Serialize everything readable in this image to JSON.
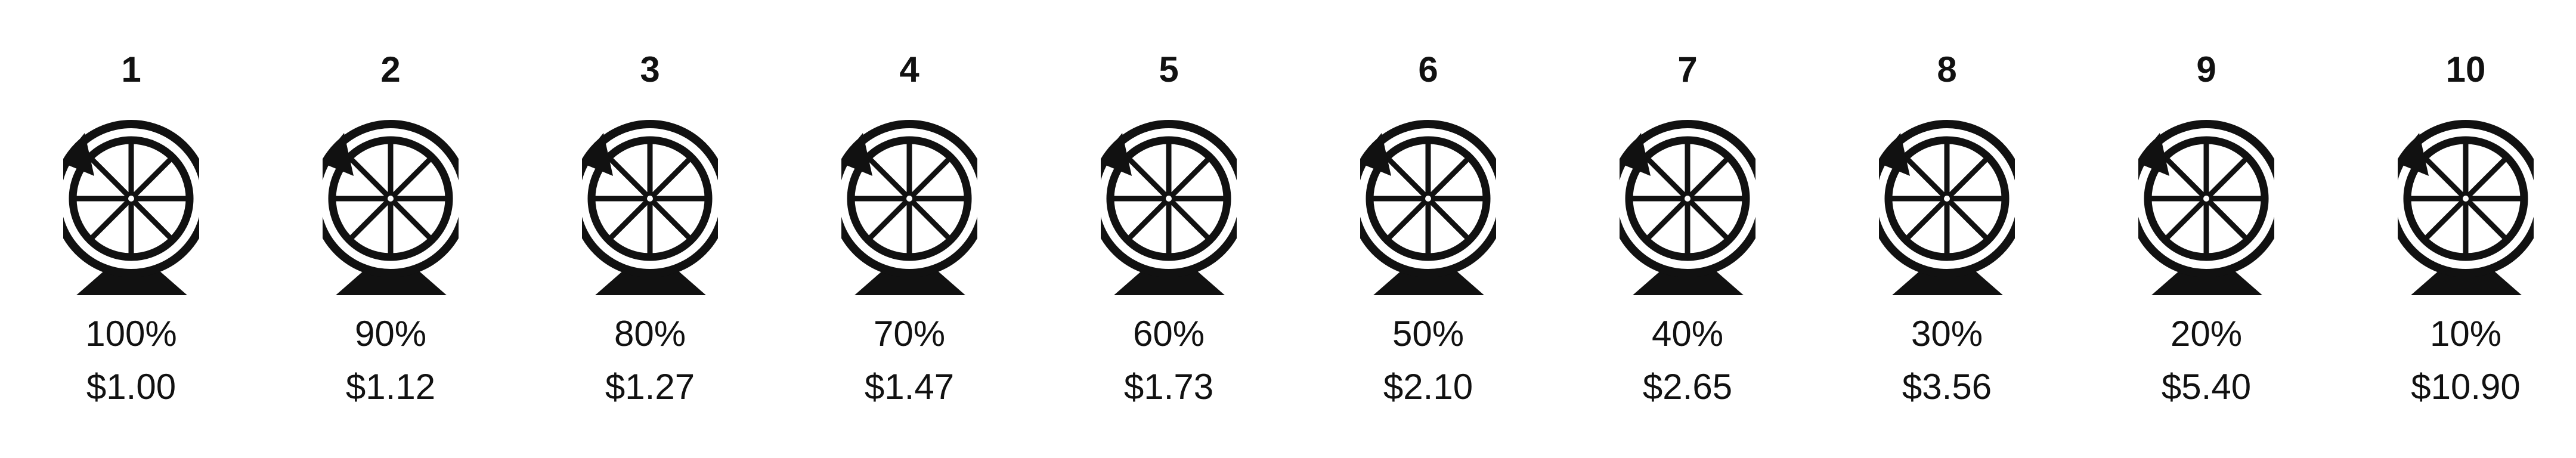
{
  "icon": "spinning-wheel-icon",
  "color": "#111111",
  "items": [
    {
      "number": "1",
      "percent": "100%",
      "price": "$1.00"
    },
    {
      "number": "2",
      "percent": "90%",
      "price": "$1.12"
    },
    {
      "number": "3",
      "percent": "80%",
      "price": "$1.27"
    },
    {
      "number": "4",
      "percent": "70%",
      "price": "$1.47"
    },
    {
      "number": "5",
      "percent": "60%",
      "price": "$1.73"
    },
    {
      "number": "6",
      "percent": "50%",
      "price": "$2.10"
    },
    {
      "number": "7",
      "percent": "40%",
      "price": "$2.65"
    },
    {
      "number": "8",
      "percent": "30%",
      "price": "$3.56"
    },
    {
      "number": "9",
      "percent": "20%",
      "price": "$5.40"
    },
    {
      "number": "10",
      "percent": "10%",
      "price": "$10.90"
    }
  ]
}
